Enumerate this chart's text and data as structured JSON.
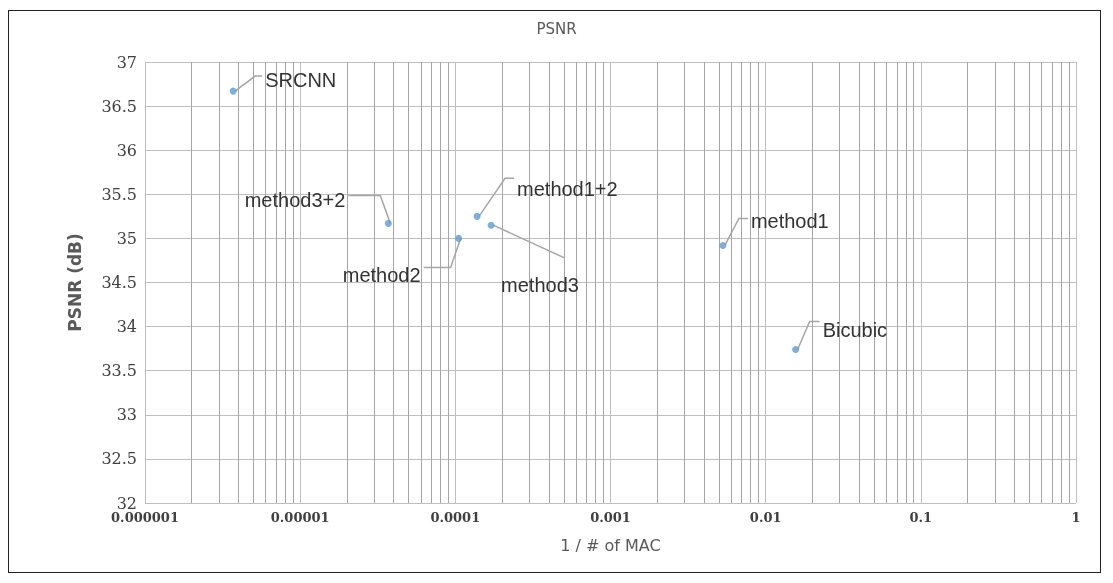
{
  "chart_data": {
    "type": "scatter",
    "title": "PSNR",
    "xlabel": "1 / # of MAC",
    "ylabel": "PSNR (dB)",
    "x": [
      3.7e-06,
      3.7e-05,
      0.000105,
      0.000138,
      0.00017,
      0.0053,
      0.0156
    ],
    "series": [
      {
        "color": "#5b9bd5",
        "values": [
          36.67,
          35.17,
          35.0,
          35.25,
          35.15,
          34.92,
          33.74
        ]
      }
    ],
    "annotations": [
      {
        "text": "SRCNN",
        "x": 3.7e-06,
        "y": 36.67
      },
      {
        "text": "method3+2",
        "x": 3.7e-05,
        "y": 35.17
      },
      {
        "text": "method2",
        "x": 0.000105,
        "y": 35.0
      },
      {
        "text": "method1+2",
        "x": 0.000138,
        "y": 35.25
      },
      {
        "text": "method3",
        "x": 0.00017,
        "y": 35.15
      },
      {
        "text": "method1",
        "x": 0.0053,
        "y": 34.92
      },
      {
        "text": "Bicubic",
        "x": 0.0156,
        "y": 33.74
      }
    ],
    "log": "x",
    "xlim": [
      1e-06,
      1
    ],
    "xticks": [
      {
        "value": 1e-06,
        "label": "0.000001"
      },
      {
        "value": 1e-05,
        "label": "0.00001"
      },
      0.0001,
      0.001,
      0.01,
      0.1,
      1
    ],
    "ylim": [
      32,
      37
    ],
    "yticks": [
      32,
      32.5,
      33,
      33.5,
      34,
      34.5,
      35,
      35.5,
      36,
      36.5,
      37
    ],
    "grid": true,
    "marker": "circle"
  }
}
